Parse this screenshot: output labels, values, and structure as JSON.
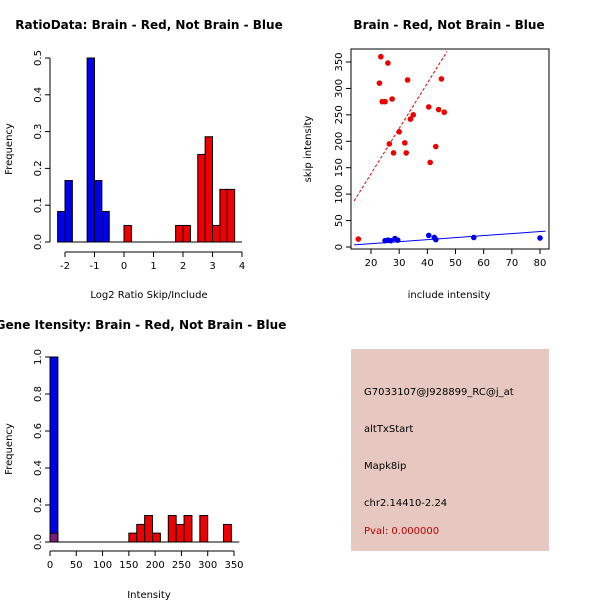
{
  "colors": {
    "red": "#ee0000",
    "blue": "#0000ee",
    "purple": "#7b1b7b",
    "panel_bg": "#e6c8c0",
    "pval": "#c00000"
  },
  "chart_data": [
    {
      "type": "bar",
      "title": "RatioData: Brain - Red, Not Brain - Blue",
      "xlabel": "Log2 Ratio Skip/Include",
      "ylabel": "Frequency",
      "xlim": [
        -2.25,
        4
      ],
      "ylim": [
        0,
        0.5
      ],
      "xticks": [
        -2,
        -1,
        0,
        1,
        2,
        3,
        4
      ],
      "xtick_labels": [
        "-2",
        "-1",
        "0",
        "1",
        "2",
        "3",
        "4"
      ],
      "yticks": [
        0,
        0.1,
        0.2,
        0.3,
        0.4,
        0.5
      ],
      "ytick_labels": [
        "0.0",
        "0.1",
        "0.2",
        "0.3",
        "0.4",
        "0.5"
      ],
      "bin_width": 0.25,
      "series": [
        {
          "name": "Not Brain",
          "color": "blue",
          "bins": [
            [
              -2.25,
              0.083
            ],
            [
              -2.0,
              0.167
            ],
            [
              -1.25,
              0.5
            ],
            [
              -1.0,
              0.167
            ],
            [
              -0.75,
              0.083
            ]
          ]
        },
        {
          "name": "Brain",
          "color": "red",
          "bins": [
            [
              0.0,
              0.045
            ],
            [
              1.75,
              0.045
            ],
            [
              2.0,
              0.045
            ],
            [
              2.5,
              0.238
            ],
            [
              2.75,
              0.286
            ],
            [
              3.0,
              0.045
            ],
            [
              3.25,
              0.143
            ],
            [
              3.5,
              0.143
            ]
          ]
        }
      ]
    },
    {
      "type": "scatter",
      "title": "Brain - Red, Not Brain - Blue",
      "xlabel": "include intensity",
      "ylabel": "skip intensity",
      "xlim": [
        14,
        82
      ],
      "ylim": [
        0,
        370
      ],
      "xticks": [
        20,
        30,
        40,
        50,
        60,
        70,
        80
      ],
      "xtick_labels": [
        "20",
        "30",
        "40",
        "50",
        "60",
        "70",
        "80"
      ],
      "yticks": [
        0,
        50,
        100,
        150,
        200,
        250,
        300,
        350
      ],
      "ytick_labels": [
        "0",
        "50",
        "100",
        "150",
        "200",
        "250",
        "300",
        "350"
      ],
      "series": [
        {
          "name": "Brain",
          "color": "red",
          "points": [
            [
              15.5,
              15
            ],
            [
              23.5,
              360
            ],
            [
              23,
              310
            ],
            [
              24,
              275
            ],
            [
              25,
              275
            ],
            [
              26,
              348
            ],
            [
              26.5,
              195
            ],
            [
              27.5,
              280
            ],
            [
              28,
              178
            ],
            [
              30,
              218
            ],
            [
              32,
              197
            ],
            [
              32.5,
              178
            ],
            [
              33,
              316
            ],
            [
              34,
              242
            ],
            [
              35,
              250
            ],
            [
              40.5,
              265
            ],
            [
              41,
              160
            ],
            [
              43,
              190
            ],
            [
              44,
              260
            ],
            [
              45,
              318
            ],
            [
              46,
              255
            ]
          ],
          "fit": [
            [
              14,
              87
            ],
            [
              47,
              370
            ]
          ]
        },
        {
          "name": "Not Brain",
          "color": "blue",
          "points": [
            [
              25,
              12
            ],
            [
              26,
              13
            ],
            [
              27,
              12
            ],
            [
              28.5,
              16
            ],
            [
              29.5,
              13
            ],
            [
              40.5,
              22
            ],
            [
              42.5,
              18
            ],
            [
              43,
              14
            ],
            [
              56.5,
              18
            ],
            [
              80,
              17
            ]
          ],
          "fit": [
            [
              14,
              4
            ],
            [
              82,
              30
            ]
          ]
        }
      ]
    },
    {
      "type": "bar",
      "title": "Gene Itensity: Brain - Red, Not Brain - Blue",
      "xlabel": "Intensity",
      "ylabel": "Frequency",
      "xlim": [
        0,
        360
      ],
      "ylim": [
        0,
        1.0
      ],
      "xticks": [
        0,
        50,
        100,
        150,
        200,
        250,
        300,
        350
      ],
      "xtick_labels": [
        "0",
        "50",
        "100",
        "150",
        "200",
        "250",
        "300",
        "350"
      ],
      "yticks": [
        0,
        0.2,
        0.4,
        0.6,
        0.8,
        1.0
      ],
      "ytick_labels": [
        "0.0",
        "0.2",
        "0.4",
        "0.6",
        "0.8",
        "1.0"
      ],
      "bin_width": 15,
      "series": [
        {
          "name": "Not Brain",
          "color": "blue",
          "bins": [
            [
              15,
              1.0
            ]
          ]
        },
        {
          "name": "Brain",
          "color": "red",
          "bins": [
            [
              15,
              0.048
            ],
            [
              150,
              0.048
            ],
            [
              165,
              0.095
            ],
            [
              180,
              0.143
            ],
            [
              195,
              0.048
            ],
            [
              225,
              0.143
            ],
            [
              240,
              0.095
            ],
            [
              255,
              0.143
            ],
            [
              285,
              0.143
            ],
            [
              330,
              0.095
            ]
          ]
        }
      ]
    }
  ],
  "info_panel": {
    "probe_id": "G7033107@J928899_RC@j_at",
    "event_type": "altTxStart",
    "gene": "Mapk8ip",
    "location": "chr2.14410-2.24",
    "pval": "Pval: 0.000000"
  }
}
